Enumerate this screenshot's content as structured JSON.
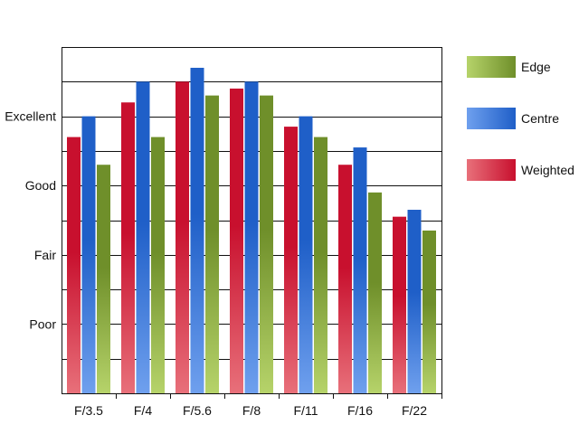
{
  "chart_data": {
    "type": "bar",
    "title": "",
    "xlabel": "",
    "ylabel": "",
    "categories": [
      "F/3.5",
      "F/4",
      "F/5.6",
      "F/8",
      "F/11",
      "F/16",
      "F/22"
    ],
    "y_tick_labels": [
      {
        "value": 1,
        "label": "Poor"
      },
      {
        "value": 2,
        "label": "Fair"
      },
      {
        "value": 3,
        "label": "Good"
      },
      {
        "value": 4,
        "label": "Excellent"
      }
    ],
    "ylim": [
      0,
      5
    ],
    "grid": true,
    "legend_position": "right",
    "series": [
      {
        "name": "Weighted",
        "color": "#c8102e",
        "light": "#e8707a",
        "values": [
          3.7,
          4.2,
          4.5,
          4.4,
          3.85,
          3.3,
          2.55
        ]
      },
      {
        "name": "Centre",
        "color": "#1f5fc8",
        "light": "#6fa0ee",
        "values": [
          4.0,
          4.5,
          4.7,
          4.5,
          4.0,
          3.55,
          2.65
        ]
      },
      {
        "name": "Edge",
        "color": "#6f8f2a",
        "light": "#b6d36a",
        "values": [
          3.3,
          3.7,
          4.3,
          4.3,
          3.7,
          2.9,
          2.35
        ]
      }
    ],
    "legend_order": [
      "Edge",
      "Centre",
      "Weighted"
    ]
  }
}
